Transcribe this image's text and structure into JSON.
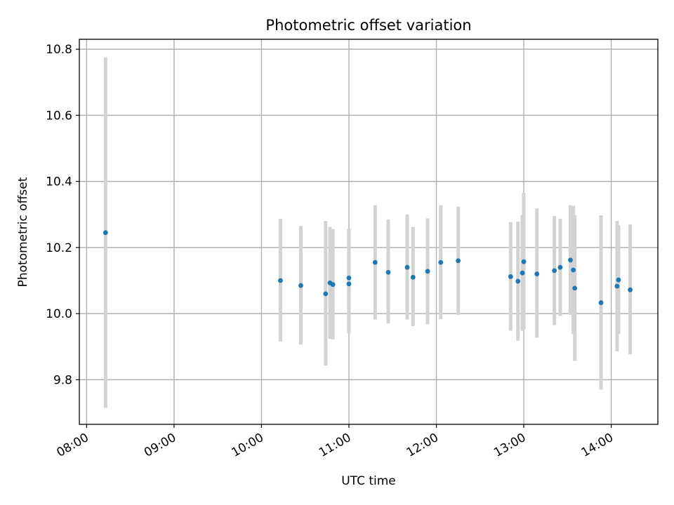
{
  "chart_data": {
    "type": "scatter",
    "title": "Photometric offset variation",
    "xlabel": "UTC time",
    "ylabel": "Photometric offset",
    "x_axis_type": "time",
    "xlim": [
      "07:55",
      "14:32"
    ],
    "ylim": [
      9.665,
      10.83
    ],
    "x_ticks": [
      "08:00",
      "09:00",
      "10:00",
      "11:00",
      "12:00",
      "13:00",
      "14:00"
    ],
    "y_ticks": [
      9.8,
      10.0,
      10.2,
      10.4,
      10.6,
      10.8
    ],
    "y_tick_labels": [
      "9.8",
      "10.0",
      "10.2",
      "10.4",
      "10.6",
      "10.8"
    ],
    "grid": true,
    "legend": "none",
    "colors": {
      "point": "#1f77b4",
      "errorbar": "#d3d3d3",
      "grid": "#b0b0b0"
    },
    "points": [
      {
        "time": "08:13",
        "y": 10.245,
        "err_low": 9.715,
        "err_high": 10.775
      },
      {
        "time": "10:13",
        "y": 10.1,
        "err_low": 9.915,
        "err_high": 10.287
      },
      {
        "time": "10:27",
        "y": 10.085,
        "err_low": 9.906,
        "err_high": 10.265
      },
      {
        "time": "10:44",
        "y": 10.06,
        "err_low": 9.843,
        "err_high": 10.28
      },
      {
        "time": "10:47",
        "y": 10.093,
        "err_low": 9.924,
        "err_high": 10.262
      },
      {
        "time": "10:49",
        "y": 10.088,
        "err_low": 9.922,
        "err_high": 10.256
      },
      {
        "time": "11:00",
        "y": 10.108,
        "err_low": 9.958,
        "err_high": 10.257
      },
      {
        "time": "11:00",
        "y": 10.09,
        "err_low": 9.94,
        "err_high": 10.24
      },
      {
        "time": "11:18",
        "y": 10.155,
        "err_low": 9.982,
        "err_high": 10.328
      },
      {
        "time": "11:27",
        "y": 10.125,
        "err_low": 9.97,
        "err_high": 10.285
      },
      {
        "time": "11:40",
        "y": 10.14,
        "err_low": 9.982,
        "err_high": 10.3
      },
      {
        "time": "11:44",
        "y": 10.11,
        "err_low": 9.962,
        "err_high": 10.262
      },
      {
        "time": "11:54",
        "y": 10.128,
        "err_low": 9.968,
        "err_high": 10.288
      },
      {
        "time": "12:03",
        "y": 10.155,
        "err_low": 9.983,
        "err_high": 10.328
      },
      {
        "time": "12:15",
        "y": 10.16,
        "err_low": 9.996,
        "err_high": 10.324
      },
      {
        "time": "12:51",
        "y": 10.112,
        "err_low": 9.948,
        "err_high": 10.277
      },
      {
        "time": "12:56",
        "y": 10.098,
        "err_low": 9.918,
        "err_high": 10.278
      },
      {
        "time": "12:59",
        "y": 10.123,
        "err_low": 9.948,
        "err_high": 10.298
      },
      {
        "time": "13:00",
        "y": 10.157,
        "err_low": 9.952,
        "err_high": 10.365
      },
      {
        "time": "13:09",
        "y": 10.12,
        "err_low": 9.927,
        "err_high": 10.318
      },
      {
        "time": "13:21",
        "y": 10.13,
        "err_low": 9.965,
        "err_high": 10.295
      },
      {
        "time": "13:25",
        "y": 10.14,
        "err_low": 9.993,
        "err_high": 10.287
      },
      {
        "time": "13:32",
        "y": 10.162,
        "err_low": 9.996,
        "err_high": 10.328
      },
      {
        "time": "13:34",
        "y": 10.132,
        "err_low": 9.938,
        "err_high": 10.326
      },
      {
        "time": "13:35",
        "y": 10.077,
        "err_low": 9.857,
        "err_high": 10.298
      },
      {
        "time": "13:53",
        "y": 10.033,
        "err_low": 9.77,
        "err_high": 10.297
      },
      {
        "time": "14:04",
        "y": 10.083,
        "err_low": 9.886,
        "err_high": 10.28
      },
      {
        "time": "14:05",
        "y": 10.102,
        "err_low": 9.938,
        "err_high": 10.267
      },
      {
        "time": "14:13",
        "y": 10.072,
        "err_low": 9.877,
        "err_high": 10.27
      }
    ]
  }
}
